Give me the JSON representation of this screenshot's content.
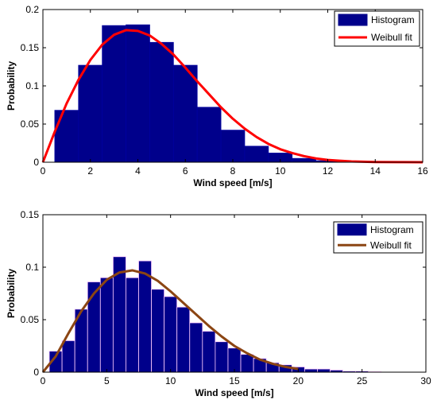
{
  "chart_data": [
    {
      "type": "bar",
      "xlabel": "Wind speed [m/s]",
      "ylabel": "Probability",
      "xlim": [
        0,
        16
      ],
      "ylim": [
        0,
        0.2
      ],
      "xticks": [
        0,
        2,
        4,
        6,
        8,
        10,
        12,
        14,
        16
      ],
      "yticks": [
        0,
        0.05,
        0.1,
        0.15,
        0.2
      ],
      "ytick_labels": [
        "0",
        "0.05",
        "0.1",
        "0.15",
        "0.2"
      ],
      "legend": {
        "position": "top-right",
        "entries": [
          "Histogram",
          "Weibull fit"
        ]
      },
      "bar_color": "#00008b",
      "bar_edge_color": "#0000a0",
      "histogram": {
        "name": "Histogram",
        "bin_width": 1,
        "bin_starts": [
          0.5,
          1.5,
          2.5,
          3.5,
          4.5,
          5.5,
          6.5,
          7.5,
          8.5,
          9.5,
          10.5,
          11.5
        ],
        "values": [
          0.068,
          0.127,
          0.179,
          0.18,
          0.157,
          0.127,
          0.072,
          0.042,
          0.021,
          0.012,
          0.005,
          0.002
        ]
      },
      "fit": {
        "name": "Weibull fit",
        "color": "#ff0000",
        "x": [
          0,
          0.5,
          1,
          1.5,
          2,
          2.5,
          3,
          3.5,
          4,
          4.5,
          5,
          5.5,
          6,
          6.5,
          7,
          7.5,
          8,
          8.5,
          9,
          9.5,
          10,
          10.5,
          11,
          11.5,
          12,
          12.5,
          13,
          14,
          15,
          16
        ],
        "y": [
          0,
          0.04,
          0.077,
          0.108,
          0.134,
          0.154,
          0.167,
          0.173,
          0.172,
          0.166,
          0.155,
          0.141,
          0.124,
          0.106,
          0.089,
          0.072,
          0.057,
          0.044,
          0.033,
          0.024,
          0.017,
          0.012,
          0.008,
          0.005,
          0.003,
          0.002,
          0.001,
          0.0003,
          0.0001,
          0
        ]
      }
    },
    {
      "type": "bar",
      "xlabel": "Wind speed [m/s]",
      "ylabel": "Probability",
      "xlim": [
        0,
        30
      ],
      "ylim": [
        0,
        0.15
      ],
      "xticks": [
        0,
        5,
        10,
        15,
        20,
        25,
        30
      ],
      "yticks": [
        0,
        0.05,
        0.1,
        0.15
      ],
      "ytick_labels": [
        "0",
        "0.05",
        "0.1",
        "0.15"
      ],
      "legend": {
        "position": "top-right",
        "entries": [
          "Histogram",
          "Weibull fit"
        ]
      },
      "bar_color": "#00008b",
      "bar_edge_color": "#ffccff",
      "histogram": {
        "name": "Histogram",
        "bin_width": 1,
        "bin_starts": [
          0.5,
          1.5,
          2.5,
          3.5,
          4.5,
          5.5,
          6.5,
          7.5,
          8.5,
          9.5,
          10.5,
          11.5,
          12.5,
          13.5,
          14.5,
          15.5,
          16.5,
          17.5,
          18.5,
          19.5,
          20.5,
          21.5,
          22.5,
          23.5,
          24.5,
          25.5
        ],
        "values": [
          0.02,
          0.03,
          0.06,
          0.086,
          0.09,
          0.11,
          0.09,
          0.106,
          0.079,
          0.072,
          0.062,
          0.047,
          0.039,
          0.029,
          0.023,
          0.017,
          0.013,
          0.009,
          0.007,
          0.005,
          0.003,
          0.003,
          0.002,
          0.001,
          0.001,
          0.0005
        ]
      },
      "fit": {
        "name": "Weibull fit",
        "color": "#8b4513",
        "x": [
          0,
          1,
          2,
          3,
          4,
          5,
          6,
          7,
          8,
          9,
          10,
          11,
          12,
          13,
          14,
          15,
          16,
          17,
          18,
          19,
          20
        ],
        "y": [
          0,
          0.015,
          0.037,
          0.058,
          0.075,
          0.088,
          0.095,
          0.097,
          0.094,
          0.087,
          0.077,
          0.066,
          0.055,
          0.044,
          0.034,
          0.025,
          0.018,
          0.012,
          0.008,
          0.005,
          0.003
        ]
      }
    }
  ]
}
